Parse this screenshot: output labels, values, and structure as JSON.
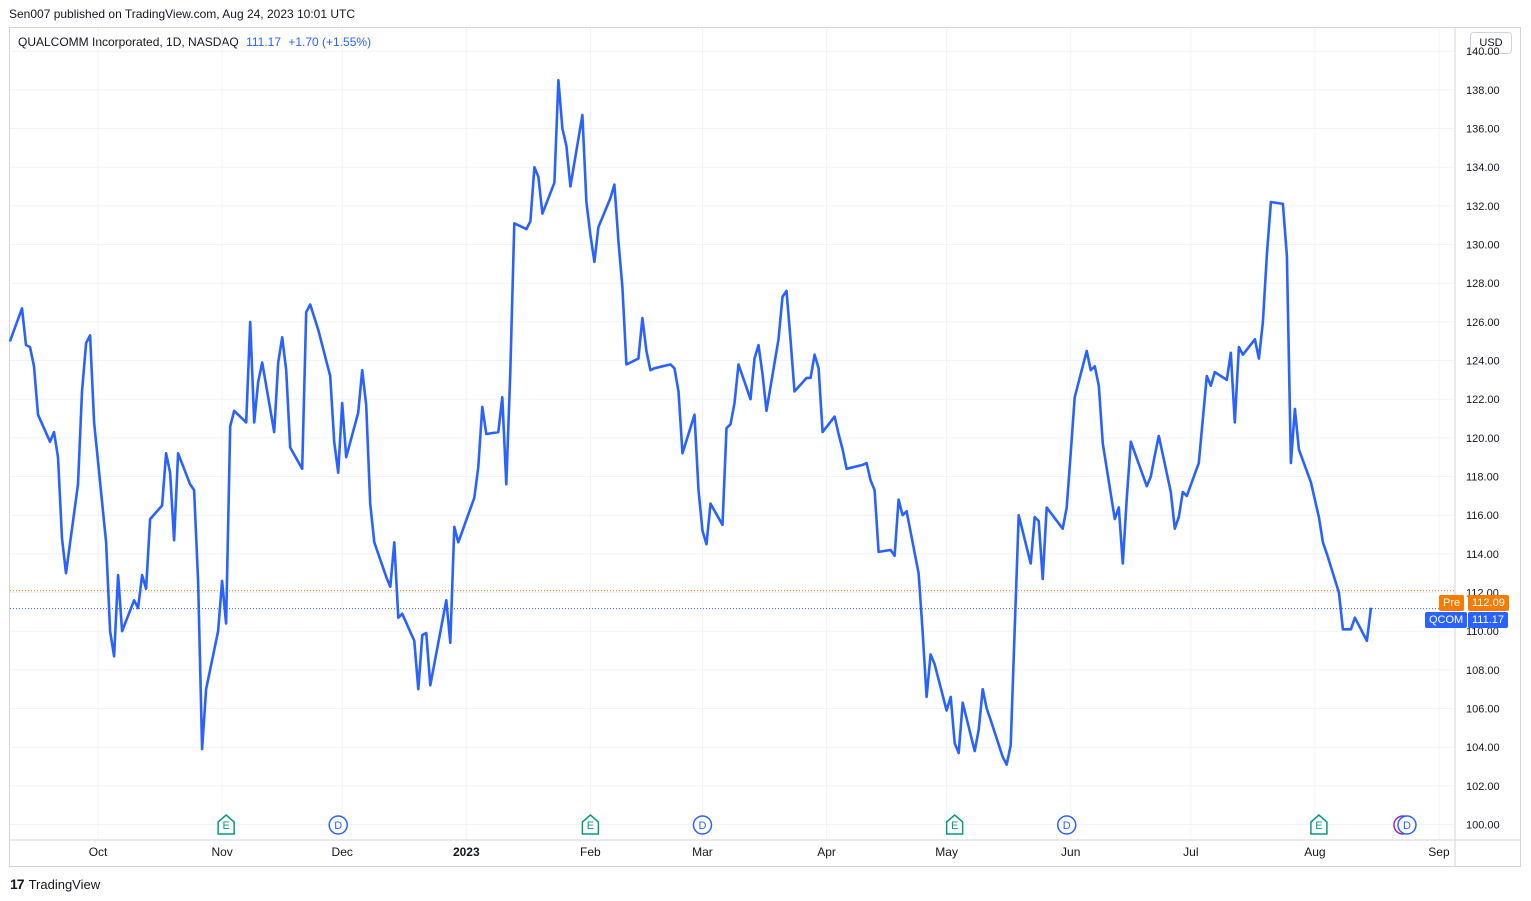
{
  "header": {
    "published": "Sen007 published on TradingView.com, Aug 24, 2023 10:01 UTC"
  },
  "legend": {
    "name": "QUALCOMM Incorporated, 1D, NASDAQ",
    "price": "111.17",
    "change": "+1.70 (+1.55%)"
  },
  "currency_button": "USD",
  "badges": {
    "pre_label": "Pre",
    "pre_value": "112.09",
    "symbol_label": "QCOM",
    "symbol_value": "111.17"
  },
  "footer": {
    "brand": "TradingView",
    "logo_mark": "17"
  },
  "colors": {
    "line": "#2962ff",
    "pre": "#f57c00",
    "grid": "#f0f3fa",
    "earnings": "#089981",
    "dividend": "#2962ff",
    "split": "#9c27b0"
  },
  "events": [
    {
      "type": "E",
      "icon": "earnings-icon",
      "date": "2022-11-02"
    },
    {
      "type": "D",
      "icon": "dividend-icon",
      "date": "2022-11-30"
    },
    {
      "type": "E",
      "icon": "earnings-icon",
      "date": "2023-02-01"
    },
    {
      "type": "D",
      "icon": "dividend-icon",
      "date": "2023-03-01"
    },
    {
      "type": "E",
      "icon": "earnings-icon",
      "date": "2023-05-03"
    },
    {
      "type": "D",
      "icon": "dividend-icon",
      "date": "2023-05-31"
    },
    {
      "type": "E",
      "icon": "earnings-icon",
      "date": "2023-08-02"
    },
    {
      "type": "⚡",
      "icon": "flash-icon",
      "date": "2023-08-23"
    },
    {
      "type": "D",
      "icon": "dividend-icon",
      "date": "2023-08-24"
    }
  ],
  "chart_data": {
    "type": "line",
    "title": "QUALCOMM Incorporated, 1D, NASDAQ",
    "xlabel": "",
    "ylabel": "",
    "ylim": [
      99.2,
      141.2
    ],
    "xlim": [
      "2022-09-09",
      "2023-09-05"
    ],
    "yticks": [
      100,
      102,
      104,
      106,
      108,
      110,
      112,
      114,
      116,
      118,
      120,
      122,
      124,
      126,
      128,
      130,
      132,
      134,
      136,
      138,
      140
    ],
    "xticks": [
      {
        "label": "Oct",
        "date": "2022-10-01",
        "bold": false
      },
      {
        "label": "Nov",
        "date": "2022-11-01",
        "bold": false
      },
      {
        "label": "Dec",
        "date": "2022-12-01",
        "bold": false
      },
      {
        "label": "2023",
        "date": "2023-01-01",
        "bold": true
      },
      {
        "label": "Feb",
        "date": "2023-02-01",
        "bold": false
      },
      {
        "label": "Mar",
        "date": "2023-03-01",
        "bold": false
      },
      {
        "label": "Apr",
        "date": "2023-04-01",
        "bold": false
      },
      {
        "label": "May",
        "date": "2023-05-01",
        "bold": false
      },
      {
        "label": "Jun",
        "date": "2023-06-01",
        "bold": false
      },
      {
        "label": "Jul",
        "date": "2023-07-01",
        "bold": false
      },
      {
        "label": "Aug",
        "date": "2023-08-01",
        "bold": false
      },
      {
        "label": "Sep",
        "date": "2023-09-01",
        "bold": false
      }
    ],
    "grid": true,
    "reference_lines": [
      {
        "name": "Pre",
        "value": 112.09,
        "style": "dotted",
        "color": "#f57c00"
      },
      {
        "name": "QCOM",
        "value": 111.17,
        "style": "dotted",
        "color": "#2962ff"
      }
    ],
    "series": [
      {
        "name": "QCOM",
        "color": "#2962ff",
        "points": [
          [
            "2022-09-09",
            125.0
          ],
          [
            "2022-09-12",
            126.7
          ],
          [
            "2022-09-13",
            124.8
          ],
          [
            "2022-09-14",
            124.7
          ],
          [
            "2022-09-15",
            123.7
          ],
          [
            "2022-09-16",
            121.2
          ],
          [
            "2022-09-19",
            119.8
          ],
          [
            "2022-09-20",
            120.3
          ],
          [
            "2022-09-21",
            119.0
          ],
          [
            "2022-09-22",
            114.8
          ],
          [
            "2022-09-23",
            113.0
          ],
          [
            "2022-09-26",
            117.6
          ],
          [
            "2022-09-27",
            122.4
          ],
          [
            "2022-09-28",
            124.9
          ],
          [
            "2022-09-29",
            125.3
          ],
          [
            "2022-09-30",
            120.8
          ],
          [
            "2022-10-03",
            114.6
          ],
          [
            "2022-10-04",
            110.0
          ],
          [
            "2022-10-05",
            108.7
          ],
          [
            "2022-10-06",
            112.9
          ],
          [
            "2022-10-07",
            110.0
          ],
          [
            "2022-10-10",
            111.6
          ],
          [
            "2022-10-11",
            111.2
          ],
          [
            "2022-10-12",
            112.9
          ],
          [
            "2022-10-13",
            112.2
          ],
          [
            "2022-10-14",
            115.8
          ],
          [
            "2022-10-17",
            116.5
          ],
          [
            "2022-10-18",
            119.2
          ],
          [
            "2022-10-19",
            118.2
          ],
          [
            "2022-10-20",
            114.7
          ],
          [
            "2022-10-21",
            119.2
          ],
          [
            "2022-10-24",
            117.6
          ],
          [
            "2022-10-25",
            117.3
          ],
          [
            "2022-10-26",
            112.6
          ],
          [
            "2022-10-27",
            103.9
          ],
          [
            "2022-10-28",
            107.0
          ],
          [
            "2022-10-31",
            110.0
          ],
          [
            "2022-11-01",
            112.6
          ],
          [
            "2022-11-02",
            110.4
          ],
          [
            "2022-11-03",
            120.6
          ],
          [
            "2022-11-04",
            121.4
          ],
          [
            "2022-11-07",
            120.8
          ],
          [
            "2022-11-08",
            126.0
          ],
          [
            "2022-11-09",
            120.8
          ],
          [
            "2022-11-10",
            122.9
          ],
          [
            "2022-11-11",
            123.9
          ],
          [
            "2022-11-14",
            120.3
          ],
          [
            "2022-11-15",
            123.9
          ],
          [
            "2022-11-16",
            125.2
          ],
          [
            "2022-11-17",
            123.5
          ],
          [
            "2022-11-18",
            119.5
          ],
          [
            "2022-11-21",
            118.4
          ],
          [
            "2022-11-22",
            126.5
          ],
          [
            "2022-11-23",
            126.9
          ],
          [
            "2022-11-25",
            125.6
          ],
          [
            "2022-11-28",
            123.2
          ],
          [
            "2022-11-29",
            119.8
          ],
          [
            "2022-11-30",
            118.2
          ],
          [
            "2022-12-01",
            121.8
          ],
          [
            "2022-12-02",
            119.0
          ],
          [
            "2022-12-05",
            121.3
          ],
          [
            "2022-12-06",
            123.5
          ],
          [
            "2022-12-07",
            121.7
          ],
          [
            "2022-12-08",
            116.6
          ],
          [
            "2022-12-09",
            114.6
          ],
          [
            "2022-12-12",
            112.8
          ],
          [
            "2022-12-13",
            112.3
          ],
          [
            "2022-12-14",
            114.6
          ],
          [
            "2022-12-15",
            110.7
          ],
          [
            "2022-12-16",
            110.9
          ],
          [
            "2022-12-19",
            109.5
          ],
          [
            "2022-12-20",
            107.0
          ],
          [
            "2022-12-21",
            109.8
          ],
          [
            "2022-12-22",
            109.9
          ],
          [
            "2022-12-23",
            107.2
          ],
          [
            "2022-12-27",
            111.6
          ],
          [
            "2022-12-28",
            109.4
          ],
          [
            "2022-12-29",
            115.4
          ],
          [
            "2022-12-30",
            114.6
          ],
          [
            "2023-01-03",
            116.9
          ],
          [
            "2023-01-04",
            118.5
          ],
          [
            "2023-01-05",
            121.6
          ],
          [
            "2023-01-06",
            120.2
          ],
          [
            "2023-01-09",
            120.3
          ],
          [
            "2023-01-10",
            122.1
          ],
          [
            "2023-01-11",
            117.6
          ],
          [
            "2023-01-12",
            123.4
          ],
          [
            "2023-01-13",
            131.1
          ],
          [
            "2023-01-16",
            130.8
          ],
          [
            "2023-01-17",
            131.2
          ],
          [
            "2023-01-18",
            134.0
          ],
          [
            "2023-01-19",
            133.5
          ],
          [
            "2023-01-20",
            131.6
          ],
          [
            "2023-01-23",
            133.2
          ],
          [
            "2023-01-24",
            138.5
          ],
          [
            "2023-01-25",
            136.0
          ],
          [
            "2023-01-26",
            135.1
          ],
          [
            "2023-01-27",
            133.0
          ],
          [
            "2023-01-30",
            136.7
          ],
          [
            "2023-01-31",
            132.2
          ],
          [
            "2023-02-01",
            130.5
          ],
          [
            "2023-02-02",
            129.1
          ],
          [
            "2023-02-03",
            130.9
          ],
          [
            "2023-02-06",
            132.4
          ],
          [
            "2023-02-07",
            133.1
          ],
          [
            "2023-02-08",
            130.2
          ],
          [
            "2023-02-09",
            127.8
          ],
          [
            "2023-02-10",
            123.8
          ],
          [
            "2023-02-13",
            124.1
          ],
          [
            "2023-02-14",
            126.2
          ],
          [
            "2023-02-15",
            124.5
          ],
          [
            "2023-02-16",
            123.5
          ],
          [
            "2023-02-17",
            123.6
          ],
          [
            "2023-02-21",
            123.8
          ],
          [
            "2023-02-22",
            123.6
          ],
          [
            "2023-02-23",
            122.4
          ],
          [
            "2023-02-24",
            119.2
          ],
          [
            "2023-02-27",
            121.2
          ],
          [
            "2023-02-28",
            117.3
          ],
          [
            "2023-03-01",
            115.2
          ],
          [
            "2023-03-02",
            114.5
          ],
          [
            "2023-03-03",
            116.6
          ],
          [
            "2023-03-06",
            115.5
          ],
          [
            "2023-03-07",
            120.5
          ],
          [
            "2023-03-08",
            120.7
          ],
          [
            "2023-03-09",
            121.8
          ],
          [
            "2023-03-10",
            123.8
          ],
          [
            "2023-03-13",
            122.0
          ],
          [
            "2023-03-14",
            124.1
          ],
          [
            "2023-03-15",
            124.8
          ],
          [
            "2023-03-16",
            123.3
          ],
          [
            "2023-03-17",
            121.4
          ],
          [
            "2023-03-20",
            125.1
          ],
          [
            "2023-03-21",
            127.3
          ],
          [
            "2023-03-22",
            127.6
          ],
          [
            "2023-03-23",
            125.1
          ],
          [
            "2023-03-24",
            122.4
          ],
          [
            "2023-03-27",
            123.1
          ],
          [
            "2023-03-28",
            123.1
          ],
          [
            "2023-03-29",
            124.3
          ],
          [
            "2023-03-30",
            123.6
          ],
          [
            "2023-03-31",
            120.3
          ],
          [
            "2023-04-03",
            121.1
          ],
          [
            "2023-04-04",
            120.2
          ],
          [
            "2023-04-05",
            119.4
          ],
          [
            "2023-04-06",
            118.4
          ],
          [
            "2023-04-10",
            118.6
          ],
          [
            "2023-04-11",
            118.7
          ],
          [
            "2023-04-12",
            117.8
          ],
          [
            "2023-04-13",
            117.3
          ],
          [
            "2023-04-14",
            114.1
          ],
          [
            "2023-04-17",
            114.2
          ],
          [
            "2023-04-18",
            113.9
          ],
          [
            "2023-04-19",
            116.8
          ],
          [
            "2023-04-20",
            116.0
          ],
          [
            "2023-04-21",
            116.2
          ],
          [
            "2023-04-24",
            113.0
          ],
          [
            "2023-04-25",
            110.0
          ],
          [
            "2023-04-26",
            106.6
          ],
          [
            "2023-04-27",
            108.8
          ],
          [
            "2023-04-28",
            108.3
          ],
          [
            "2023-05-01",
            105.9
          ],
          [
            "2023-05-02",
            106.6
          ],
          [
            "2023-05-03",
            104.2
          ],
          [
            "2023-05-04",
            103.7
          ],
          [
            "2023-05-05",
            106.3
          ],
          [
            "2023-05-08",
            103.8
          ],
          [
            "2023-05-09",
            104.9
          ],
          [
            "2023-05-10",
            107.0
          ],
          [
            "2023-05-11",
            106.0
          ],
          [
            "2023-05-12",
            105.4
          ],
          [
            "2023-05-15",
            103.5
          ],
          [
            "2023-05-16",
            103.1
          ],
          [
            "2023-05-17",
            104.1
          ],
          [
            "2023-05-18",
            110.1
          ],
          [
            "2023-05-19",
            116.0
          ],
          [
            "2023-05-22",
            113.5
          ],
          [
            "2023-05-23",
            115.9
          ],
          [
            "2023-05-24",
            115.7
          ],
          [
            "2023-05-25",
            112.7
          ],
          [
            "2023-05-26",
            116.4
          ],
          [
            "2023-05-30",
            115.3
          ],
          [
            "2023-05-31",
            116.4
          ],
          [
            "2023-06-01",
            119.2
          ],
          [
            "2023-06-02",
            122.1
          ],
          [
            "2023-06-05",
            124.5
          ],
          [
            "2023-06-06",
            123.5
          ],
          [
            "2023-06-07",
            123.7
          ],
          [
            "2023-06-08",
            122.7
          ],
          [
            "2023-06-09",
            119.7
          ],
          [
            "2023-06-12",
            115.8
          ],
          [
            "2023-06-13",
            116.4
          ],
          [
            "2023-06-14",
            113.5
          ],
          [
            "2023-06-15",
            116.9
          ],
          [
            "2023-06-16",
            119.8
          ],
          [
            "2023-06-20",
            117.5
          ],
          [
            "2023-06-21",
            118.0
          ],
          [
            "2023-06-22",
            119.1
          ],
          [
            "2023-06-23",
            120.1
          ],
          [
            "2023-06-26",
            117.2
          ],
          [
            "2023-06-27",
            115.3
          ],
          [
            "2023-06-28",
            115.9
          ],
          [
            "2023-06-29",
            117.2
          ],
          [
            "2023-06-30",
            117.0
          ],
          [
            "2023-07-03",
            118.7
          ],
          [
            "2023-07-05",
            123.2
          ],
          [
            "2023-07-06",
            122.7
          ],
          [
            "2023-07-07",
            123.4
          ],
          [
            "2023-07-10",
            123.0
          ],
          [
            "2023-07-11",
            124.4
          ],
          [
            "2023-07-12",
            120.8
          ],
          [
            "2023-07-13",
            124.7
          ],
          [
            "2023-07-14",
            124.3
          ],
          [
            "2023-07-17",
            125.1
          ],
          [
            "2023-07-18",
            124.1
          ],
          [
            "2023-07-19",
            126.0
          ],
          [
            "2023-07-20",
            129.5
          ],
          [
            "2023-07-21",
            132.2
          ],
          [
            "2023-07-24",
            132.1
          ],
          [
            "2023-07-25",
            129.4
          ],
          [
            "2023-07-26",
            118.7
          ],
          [
            "2023-07-27",
            121.5
          ],
          [
            "2023-07-28",
            119.4
          ],
          [
            "2023-07-31",
            117.7
          ],
          [
            "2023-08-01",
            116.8
          ],
          [
            "2023-08-02",
            115.9
          ],
          [
            "2023-08-03",
            114.6
          ],
          [
            "2023-08-04",
            114.0
          ],
          [
            "2023-08-07",
            112.0
          ],
          [
            "2023-08-08",
            110.1
          ],
          [
            "2023-08-09",
            110.1
          ],
          [
            "2023-08-10",
            110.1
          ],
          [
            "2023-08-11",
            110.7
          ],
          [
            "2023-08-14",
            109.5
          ],
          [
            "2023-08-15",
            111.2
          ]
        ]
      }
    ]
  }
}
